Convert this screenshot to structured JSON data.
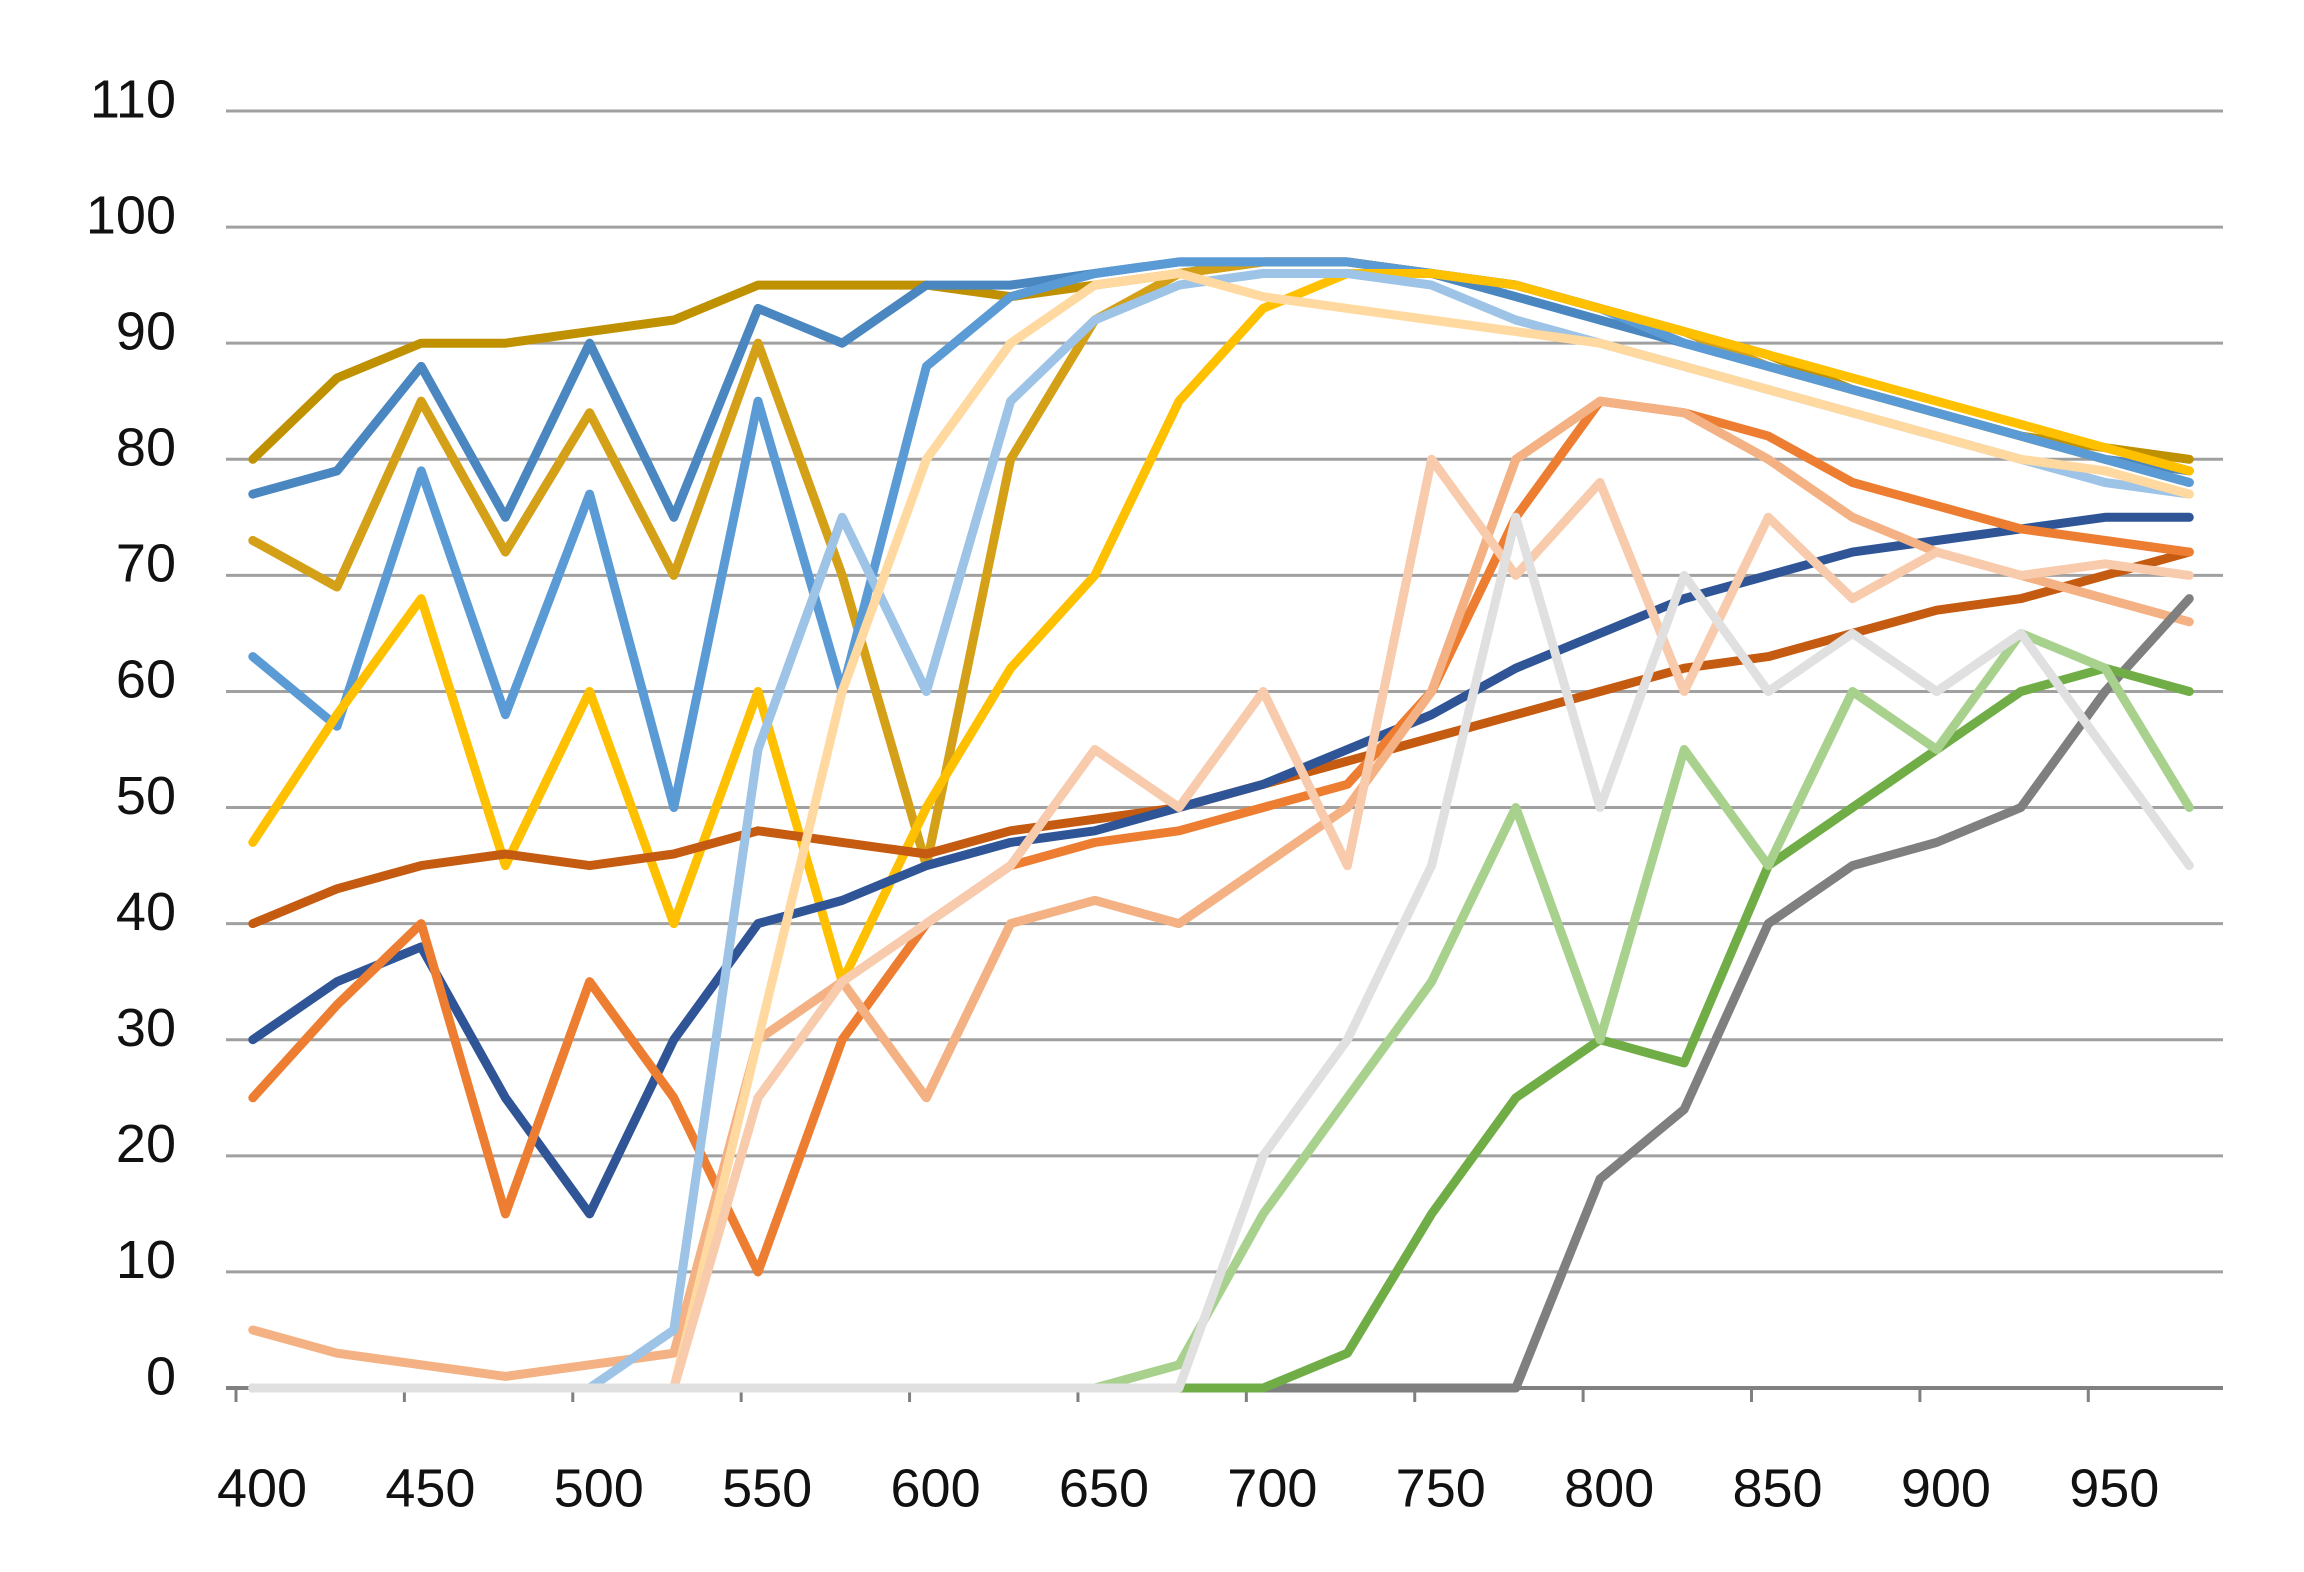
{
  "chart_data": {
    "type": "line",
    "x": [
      405,
      430,
      455,
      480,
      505,
      530,
      555,
      580,
      605,
      630,
      655,
      680,
      705,
      730,
      755,
      780,
      805,
      830,
      855,
      880,
      905,
      930,
      955,
      980
    ],
    "xlim": [
      400,
      990
    ],
    "xticks": [
      400,
      450,
      500,
      550,
      600,
      650,
      700,
      750,
      800,
      850,
      900,
      950
    ],
    "ylim": [
      0,
      110
    ],
    "yticks": [
      0,
      10,
      20,
      30,
      40,
      50,
      60,
      70,
      80,
      90,
      100,
      110
    ],
    "grid": true,
    "series": [
      {
        "color": "#bf9000",
        "values": [
          80,
          87,
          90,
          90,
          91,
          92,
          95,
          95,
          95,
          94,
          95,
          96,
          97,
          97,
          96,
          95,
          93,
          91,
          89,
          86,
          84,
          82,
          81,
          80
        ]
      },
      {
        "color": "#4a86c0",
        "values": [
          77,
          79,
          88,
          75,
          90,
          75,
          93,
          90,
          95,
          95,
          96,
          97,
          97,
          97,
          96,
          94,
          92,
          90,
          88,
          86,
          84,
          82,
          80,
          79
        ]
      },
      {
        "color": "#d4a017",
        "values": [
          73,
          69,
          85,
          72,
          84,
          70,
          90,
          70,
          45,
          80,
          92,
          96,
          97,
          97,
          96,
          95,
          93,
          91,
          88,
          86,
          84,
          82,
          80,
          78
        ]
      },
      {
        "color": "#5b9bd5",
        "values": [
          63,
          57,
          79,
          58,
          77,
          50,
          85,
          60,
          88,
          94,
          96,
          97,
          97,
          97,
          96,
          95,
          93,
          90,
          88,
          86,
          84,
          82,
          80,
          78
        ]
      },
      {
        "color": "#ffc000",
        "values": [
          47,
          58,
          68,
          45,
          60,
          40,
          60,
          35,
          50,
          62,
          70,
          85,
          93,
          96,
          96,
          95,
          93,
          91,
          89,
          87,
          85,
          83,
          81,
          79
        ]
      },
      {
        "color": "#c55a11",
        "values": [
          40,
          43,
          45,
          46,
          45,
          46,
          48,
          47,
          46,
          48,
          49,
          50,
          52,
          54,
          56,
          58,
          60,
          62,
          63,
          65,
          67,
          68,
          70,
          72
        ]
      },
      {
        "color": "#2f5597",
        "values": [
          30,
          35,
          38,
          25,
          15,
          30,
          40,
          42,
          45,
          47,
          48,
          50,
          52,
          55,
          58,
          62,
          65,
          68,
          70,
          72,
          73,
          74,
          75,
          75
        ]
      },
      {
        "color": "#ed7d31",
        "values": [
          25,
          33,
          40,
          15,
          35,
          25,
          10,
          30,
          40,
          45,
          47,
          48,
          50,
          52,
          60,
          75,
          85,
          84,
          82,
          78,
          76,
          74,
          73,
          72
        ]
      },
      {
        "color": "#f4b183",
        "values": [
          5,
          3,
          2,
          1,
          2,
          3,
          30,
          35,
          25,
          40,
          42,
          40,
          45,
          50,
          60,
          80,
          85,
          84,
          80,
          75,
          72,
          70,
          68,
          66
        ]
      },
      {
        "color": "#9dc3e6",
        "values": [
          0,
          0,
          0,
          0,
          0,
          5,
          55,
          75,
          60,
          85,
          92,
          95,
          96,
          96,
          95,
          92,
          90,
          88,
          86,
          84,
          82,
          80,
          78,
          77
        ]
      },
      {
        "color": "#ffd9a0",
        "values": [
          0,
          0,
          0,
          0,
          0,
          0,
          30,
          60,
          80,
          90,
          95,
          96,
          94,
          93,
          92,
          91,
          90,
          88,
          86,
          84,
          82,
          80,
          79,
          77
        ]
      },
      {
        "color": "#f8cbad",
        "values": [
          0,
          0,
          0,
          0,
          0,
          0,
          25,
          35,
          40,
          45,
          55,
          50,
          60,
          45,
          80,
          70,
          78,
          60,
          75,
          68,
          72,
          70,
          71,
          70
        ]
      },
      {
        "color": "#7f7f7f",
        "values": [
          0,
          0,
          0,
          0,
          0,
          0,
          0,
          0,
          0,
          0,
          0,
          0,
          0,
          0,
          0,
          0,
          18,
          24,
          40,
          45,
          47,
          50,
          60,
          68
        ]
      },
      {
        "color": "#70ad47",
        "values": [
          0,
          0,
          0,
          0,
          0,
          0,
          0,
          0,
          0,
          0,
          0,
          0,
          0,
          3,
          15,
          25,
          30,
          28,
          45,
          50,
          55,
          60,
          62,
          60
        ]
      },
      {
        "color": "#a9d18e",
        "values": [
          0,
          0,
          0,
          0,
          0,
          0,
          0,
          0,
          0,
          0,
          0,
          2,
          15,
          25,
          35,
          50,
          30,
          55,
          45,
          60,
          55,
          65,
          62,
          50
        ]
      },
      {
        "color": "#e0e0e0",
        "values": [
          0,
          0,
          0,
          0,
          0,
          0,
          0,
          0,
          0,
          0,
          0,
          0,
          20,
          30,
          45,
          75,
          50,
          70,
          60,
          65,
          60,
          65,
          55,
          45
        ]
      }
    ]
  }
}
